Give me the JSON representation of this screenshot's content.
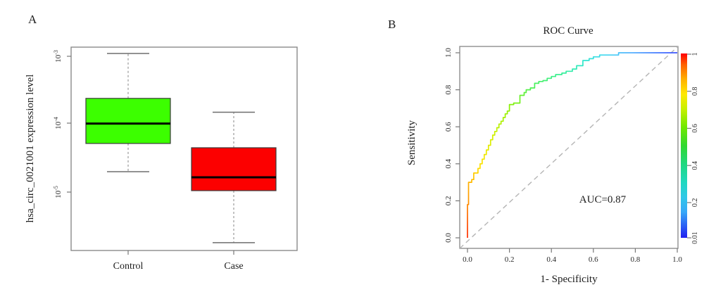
{
  "figure": {
    "panelA": {
      "label": "A",
      "y_axis_label": "hsa_circ_0021001 expression level",
      "y_ticks": [
        {
          "base": "10",
          "exp": "-3"
        },
        {
          "base": "10",
          "exp": "-4"
        },
        {
          "base": "10",
          "exp": "-5"
        }
      ],
      "x_categories": [
        "Control",
        "Case"
      ]
    },
    "panelB": {
      "label": "B",
      "title": "ROC Curve",
      "x_axis_label": "1- Specificity",
      "y_axis_label": "Sensitivity",
      "x_ticks": [
        "0.0",
        "0.2",
        "0.4",
        "0.6",
        "0.8",
        "1.0"
      ],
      "y_ticks": [
        "0.0",
        "0.2",
        "0.4",
        "0.6",
        "0.8",
        "1.0"
      ],
      "annotation": "AUC=0.87",
      "colorbar_ticks": [
        "1",
        "0.8",
        "0.6",
        "0.4",
        "0.2",
        "0.01"
      ]
    }
  },
  "chart_data": [
    {
      "type": "boxplot",
      "ylabel": "hsa_circ_0021001 expression level",
      "yscale": "log",
      "ylim": [
        1.5e-06,
        0.0015
      ],
      "y_tick_values": [
        0.001,
        0.0001,
        1e-05
      ],
      "categories": [
        "Control",
        "Case"
      ],
      "series": [
        {
          "name": "Control",
          "color": "#3CFF00",
          "whisker_low": 2e-05,
          "q1": 5.2e-05,
          "median": 0.000102,
          "q3": 0.00024,
          "whisker_high": 0.0011
        },
        {
          "name": "Case",
          "color": "#FC0000",
          "whisker_low": 1.8e-06,
          "q1": 1.05e-05,
          "median": 1.65e-05,
          "q3": 4.5e-05,
          "whisker_high": 0.00015
        }
      ]
    },
    {
      "type": "line",
      "title": "ROC Curve",
      "xlabel": "1- Specificity",
      "ylabel": "Sensitivity",
      "xlim": [
        0,
        1
      ],
      "ylim": [
        0,
        1
      ],
      "annotation": "AUC=0.87",
      "auc": 0.87,
      "diagonal_reference": true,
      "colorbar": {
        "max": 1,
        "min": 0.01,
        "ticks": [
          1,
          0.8,
          0.6,
          0.4,
          0.2,
          0.01
        ]
      },
      "roc_points": [
        [
          0,
          0
        ],
        [
          0,
          0.18
        ],
        [
          0.005,
          0.18
        ],
        [
          0.005,
          0.3
        ],
        [
          0.02,
          0.3
        ],
        [
          0.02,
          0.315
        ],
        [
          0.03,
          0.315
        ],
        [
          0.03,
          0.35
        ],
        [
          0.05,
          0.35
        ],
        [
          0.05,
          0.375
        ],
        [
          0.06,
          0.375
        ],
        [
          0.06,
          0.4
        ],
        [
          0.07,
          0.4
        ],
        [
          0.07,
          0.425
        ],
        [
          0.08,
          0.425
        ],
        [
          0.08,
          0.45
        ],
        [
          0.09,
          0.45
        ],
        [
          0.09,
          0.475
        ],
        [
          0.1,
          0.475
        ],
        [
          0.1,
          0.5
        ],
        [
          0.11,
          0.5
        ],
        [
          0.11,
          0.53
        ],
        [
          0.12,
          0.53
        ],
        [
          0.12,
          0.555
        ],
        [
          0.13,
          0.555
        ],
        [
          0.13,
          0.575
        ],
        [
          0.14,
          0.575
        ],
        [
          0.14,
          0.595
        ],
        [
          0.15,
          0.595
        ],
        [
          0.15,
          0.615
        ],
        [
          0.16,
          0.615
        ],
        [
          0.16,
          0.63
        ],
        [
          0.17,
          0.63
        ],
        [
          0.17,
          0.65
        ],
        [
          0.18,
          0.65
        ],
        [
          0.18,
          0.67
        ],
        [
          0.19,
          0.67
        ],
        [
          0.19,
          0.685
        ],
        [
          0.2,
          0.685
        ],
        [
          0.2,
          0.72
        ],
        [
          0.22,
          0.72
        ],
        [
          0.22,
          0.728
        ],
        [
          0.25,
          0.728
        ],
        [
          0.25,
          0.77
        ],
        [
          0.27,
          0.77
        ],
        [
          0.27,
          0.785
        ],
        [
          0.28,
          0.785
        ],
        [
          0.28,
          0.8
        ],
        [
          0.3,
          0.8
        ],
        [
          0.3,
          0.81
        ],
        [
          0.32,
          0.81
        ],
        [
          0.32,
          0.835
        ],
        [
          0.34,
          0.835
        ],
        [
          0.34,
          0.845
        ],
        [
          0.36,
          0.845
        ],
        [
          0.36,
          0.85
        ],
        [
          0.38,
          0.85
        ],
        [
          0.38,
          0.862
        ],
        [
          0.4,
          0.862
        ],
        [
          0.4,
          0.872
        ],
        [
          0.42,
          0.872
        ],
        [
          0.42,
          0.882
        ],
        [
          0.45,
          0.882
        ],
        [
          0.45,
          0.89
        ],
        [
          0.47,
          0.89
        ],
        [
          0.47,
          0.9
        ],
        [
          0.5,
          0.9
        ],
        [
          0.5,
          0.912
        ],
        [
          0.52,
          0.912
        ],
        [
          0.52,
          0.93
        ],
        [
          0.55,
          0.93
        ],
        [
          0.55,
          0.958
        ],
        [
          0.58,
          0.958
        ],
        [
          0.58,
          0.968
        ],
        [
          0.6,
          0.968
        ],
        [
          0.6,
          0.978
        ],
        [
          0.63,
          0.978
        ],
        [
          0.63,
          0.988
        ],
        [
          0.72,
          0.988
        ],
        [
          0.72,
          1
        ],
        [
          1,
          1
        ]
      ]
    }
  ]
}
